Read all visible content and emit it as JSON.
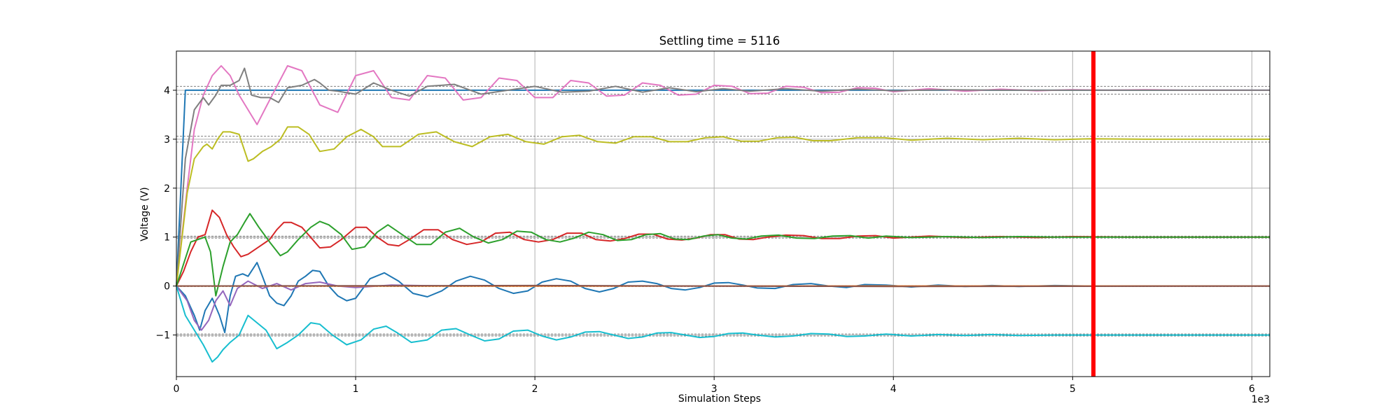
{
  "chart_data": {
    "type": "line",
    "title": "Settling time = 5116",
    "xlabel": "Simulation Steps",
    "ylabel": "Voltage (V)",
    "x_offset_label": "1e3",
    "xlim": [
      0,
      6100
    ],
    "ylim": [
      -1.85,
      4.8
    ],
    "x_ticks": [
      0,
      1000,
      2000,
      3000,
      4000,
      5000,
      6000
    ],
    "x_tick_labels": [
      "0",
      "1",
      "2",
      "3",
      "4",
      "5",
      "6"
    ],
    "y_ticks": [
      -1,
      0,
      1,
      2,
      3,
      4
    ],
    "y_tick_labels": [
      "−1",
      "0",
      "1",
      "2",
      "3",
      "4"
    ],
    "grid": true,
    "settling_time": 5116,
    "settling_line_color": "#ff0000",
    "tolerance_bands": [
      {
        "target": 4,
        "band": [
          3.92,
          4.08
        ]
      },
      {
        "target": 3,
        "band": [
          2.94,
          3.06
        ]
      },
      {
        "target": 1,
        "band": [
          0.98,
          1.02
        ]
      },
      {
        "target": 0,
        "band": [
          -0.01,
          0.01
        ]
      },
      {
        "target": -1,
        "band": [
          -1.02,
          -0.98
        ]
      }
    ],
    "series": [
      {
        "color": "#1f77b4",
        "target": 4,
        "x": [
          0,
          50,
          100,
          6100
        ],
        "y": [
          0,
          4,
          4,
          4
        ]
      },
      {
        "color": "#e377c2",
        "target": 4,
        "x": [
          0,
          60,
          100,
          150,
          200,
          250,
          300,
          350,
          400,
          450,
          520,
          620,
          700,
          800,
          900,
          1000,
          1100,
          1200,
          1300,
          1400,
          1500,
          1600,
          1700,
          1800,
          1900,
          2000,
          2100,
          2200,
          2300,
          2400,
          2500,
          2600,
          2700,
          2800,
          2900,
          3000,
          3100,
          3200,
          3300,
          3400,
          3500,
          3600,
          3700,
          3800,
          3900,
          4000,
          4200,
          4400,
          4600,
          4800,
          5000,
          5200,
          5400,
          5600,
          5800,
          6100
        ],
        "y": [
          0,
          2.0,
          3.2,
          3.9,
          4.3,
          4.5,
          4.3,
          3.9,
          3.6,
          3.3,
          3.8,
          4.5,
          4.4,
          3.7,
          3.55,
          4.3,
          4.4,
          3.85,
          3.8,
          4.3,
          4.25,
          3.8,
          3.85,
          4.25,
          4.2,
          3.85,
          3.85,
          4.2,
          4.15,
          3.88,
          3.9,
          4.15,
          4.1,
          3.9,
          3.92,
          4.1,
          4.08,
          3.93,
          3.94,
          4.08,
          4.06,
          3.95,
          3.96,
          4.05,
          4.04,
          3.97,
          4.03,
          3.98,
          4.02,
          3.99,
          4.01,
          4.0,
          4.01,
          4.0,
          4.0,
          4.0
        ]
      },
      {
        "color": "#7f7f7f",
        "target": 4,
        "x": [
          0,
          50,
          100,
          150,
          180,
          220,
          250,
          300,
          350,
          380,
          420,
          470,
          520,
          570,
          620,
          700,
          770,
          800,
          850,
          900,
          1000,
          1100,
          1200,
          1300,
          1400,
          1550,
          1700,
          1850,
          2000,
          2150,
          2300,
          2450,
          2600,
          2750,
          2900,
          3050,
          3200,
          3400,
          3600,
          3800,
          4000,
          4300,
          4600,
          5000,
          5500,
          6100
        ],
        "y": [
          0,
          2.6,
          3.6,
          3.85,
          3.7,
          3.9,
          4.1,
          4.1,
          4.2,
          4.45,
          3.9,
          3.85,
          3.85,
          3.75,
          4.05,
          4.1,
          4.22,
          4.15,
          4.0,
          3.98,
          3.92,
          4.15,
          4.0,
          3.88,
          4.08,
          4.12,
          3.92,
          4.0,
          4.08,
          3.96,
          3.98,
          4.08,
          3.96,
          4.05,
          3.97,
          4.03,
          3.98,
          4.03,
          3.98,
          4.02,
          3.99,
          4.01,
          4.0,
          4.0,
          4.0,
          4.0
        ]
      },
      {
        "color": "#bcbd22",
        "target": 3,
        "x": [
          0,
          60,
          100,
          150,
          170,
          200,
          230,
          260,
          300,
          350,
          400,
          430,
          480,
          530,
          580,
          620,
          680,
          740,
          800,
          880,
          950,
          1030,
          1100,
          1150,
          1250,
          1350,
          1450,
          1550,
          1650,
          1750,
          1850,
          1950,
          2050,
          2150,
          2250,
          2350,
          2450,
          2550,
          2650,
          2750,
          2850,
          2950,
          3050,
          3150,
          3250,
          3350,
          3450,
          3550,
          3650,
          3800,
          3950,
          4100,
          4300,
          4500,
          4700,
          4900,
          5100,
          5400,
          5800,
          6100
        ],
        "y": [
          0,
          1.9,
          2.6,
          2.85,
          2.9,
          2.8,
          3.0,
          3.15,
          3.15,
          3.1,
          2.55,
          2.6,
          2.75,
          2.85,
          3.0,
          3.25,
          3.25,
          3.1,
          2.75,
          2.8,
          3.05,
          3.2,
          3.05,
          2.85,
          2.85,
          3.1,
          3.15,
          2.95,
          2.85,
          3.05,
          3.1,
          2.95,
          2.9,
          3.05,
          3.08,
          2.95,
          2.92,
          3.05,
          3.05,
          2.95,
          2.95,
          3.03,
          3.05,
          2.96,
          2.96,
          3.03,
          3.04,
          2.97,
          2.97,
          3.03,
          3.03,
          2.98,
          3.02,
          2.99,
          3.02,
          2.99,
          3.01,
          3.0,
          3.0,
          3.0
        ]
      },
      {
        "color": "#d62728",
        "target": 1,
        "x": [
          0,
          40,
          80,
          120,
          160,
          200,
          240,
          280,
          320,
          360,
          400,
          460,
          520,
          560,
          600,
          640,
          700,
          760,
          800,
          860,
          920,
          1000,
          1060,
          1120,
          1180,
          1240,
          1300,
          1380,
          1460,
          1540,
          1620,
          1700,
          1780,
          1860,
          1940,
          2020,
          2100,
          2180,
          2260,
          2340,
          2420,
          2500,
          2580,
          2660,
          2740,
          2820,
          2900,
          2980,
          3060,
          3140,
          3220,
          3300,
          3400,
          3500,
          3600,
          3700,
          3800,
          3900,
          4000,
          4200,
          4400,
          4600,
          4800,
          5000,
          5300,
          5600,
          6100
        ],
        "y": [
          0,
          0.3,
          0.7,
          1.0,
          1.05,
          1.55,
          1.4,
          1.05,
          0.8,
          0.6,
          0.65,
          0.8,
          0.95,
          1.15,
          1.3,
          1.3,
          1.2,
          0.95,
          0.78,
          0.8,
          0.95,
          1.2,
          1.2,
          1.0,
          0.85,
          0.82,
          0.95,
          1.15,
          1.15,
          0.95,
          0.85,
          0.9,
          1.08,
          1.1,
          0.95,
          0.9,
          0.95,
          1.08,
          1.08,
          0.95,
          0.92,
          0.97,
          1.06,
          1.06,
          0.96,
          0.94,
          0.98,
          1.05,
          1.05,
          0.96,
          0.95,
          1.0,
          1.04,
          1.03,
          0.97,
          0.97,
          1.02,
          1.03,
          0.98,
          1.02,
          0.99,
          1.01,
          0.99,
          1.01,
          1.0,
          1.0,
          1.0
        ]
      },
      {
        "color": "#2ca02c",
        "target": 1,
        "x": [
          0,
          80,
          120,
          160,
          190,
          220,
          260,
          300,
          340,
          380,
          410,
          460,
          520,
          580,
          620,
          680,
          750,
          800,
          850,
          920,
          980,
          1050,
          1120,
          1180,
          1260,
          1340,
          1420,
          1500,
          1580,
          1660,
          1740,
          1820,
          1900,
          1980,
          2060,
          2140,
          2220,
          2300,
          2380,
          2460,
          2540,
          2620,
          2700,
          2780,
          2860,
          2940,
          3020,
          3100,
          3180,
          3260,
          3360,
          3460,
          3560,
          3660,
          3760,
          3860,
          3960,
          4100,
          4300,
          4500,
          4700,
          4900,
          5200,
          5600,
          6100
        ],
        "y": [
          0,
          0.9,
          0.95,
          1.0,
          0.7,
          -0.2,
          0.4,
          0.9,
          1.05,
          1.3,
          1.48,
          1.2,
          0.9,
          0.62,
          0.7,
          0.95,
          1.2,
          1.32,
          1.25,
          1.05,
          0.75,
          0.8,
          1.1,
          1.25,
          1.05,
          0.85,
          0.85,
          1.1,
          1.18,
          1.0,
          0.88,
          0.95,
          1.12,
          1.1,
          0.95,
          0.9,
          0.98,
          1.1,
          1.05,
          0.93,
          0.95,
          1.05,
          1.07,
          0.96,
          0.95,
          1.02,
          1.05,
          0.98,
          0.96,
          1.02,
          1.04,
          0.98,
          0.97,
          1.02,
          1.03,
          0.98,
          1.02,
          0.99,
          1.01,
          0.99,
          1.01,
          1.0,
          1.0,
          1.0,
          1.0
        ]
      },
      {
        "color": "#1f77b4",
        "target": 0,
        "x": [
          0,
          50,
          100,
          130,
          160,
          200,
          240,
          270,
          300,
          330,
          370,
          400,
          450,
          480,
          520,
          560,
          600,
          640,
          680,
          720,
          760,
          800,
          850,
          900,
          950,
          1000,
          1080,
          1160,
          1240,
          1320,
          1400,
          1480,
          1560,
          1640,
          1720,
          1800,
          1880,
          1960,
          2040,
          2120,
          2200,
          2280,
          2360,
          2440,
          2520,
          2600,
          2680,
          2760,
          2840,
          2920,
          3000,
          3080,
          3160,
          3240,
          3340,
          3440,
          3540,
          3640,
          3740,
          3840,
          3960,
          4100,
          4250,
          4400,
          4550,
          4700,
          4900,
          5100,
          5400,
          5800,
          6100
        ],
        "y": [
          0,
          -0.2,
          -0.6,
          -0.9,
          -0.5,
          -0.25,
          -0.6,
          -0.95,
          -0.2,
          0.2,
          0.25,
          0.2,
          0.48,
          0.2,
          -0.2,
          -0.35,
          -0.4,
          -0.2,
          0.1,
          0.2,
          0.32,
          0.3,
          0.0,
          -0.2,
          -0.3,
          -0.25,
          0.15,
          0.27,
          0.1,
          -0.15,
          -0.22,
          -0.1,
          0.1,
          0.2,
          0.12,
          -0.05,
          -0.15,
          -0.1,
          0.08,
          0.15,
          0.1,
          -0.05,
          -0.12,
          -0.05,
          0.08,
          0.1,
          0.05,
          -0.05,
          -0.08,
          -0.03,
          0.06,
          0.07,
          0.02,
          -0.04,
          -0.05,
          0.03,
          0.05,
          0.0,
          -0.03,
          0.03,
          0.02,
          -0.02,
          0.02,
          -0.01,
          0.01,
          -0.01,
          0.01,
          0.0,
          0.0,
          0.0,
          0.0
        ]
      },
      {
        "color": "#9467bd",
        "target": 0,
        "x": [
          0,
          60,
          100,
          140,
          180,
          220,
          260,
          300,
          340,
          400,
          480,
          560,
          640,
          720,
          800,
          900,
          1000,
          1200,
          1500,
          2000,
          3000,
          6100
        ],
        "y": [
          0,
          -0.3,
          -0.7,
          -0.9,
          -0.7,
          -0.3,
          -0.1,
          -0.4,
          -0.05,
          0.1,
          -0.05,
          0.05,
          -0.08,
          0.05,
          0.08,
          0.0,
          -0.03,
          0.02,
          0.0,
          0.0,
          0.0,
          0.0
        ]
      },
      {
        "color": "#ff7f0e",
        "target": 0,
        "x": [
          0,
          6100
        ],
        "y": [
          0,
          0
        ]
      },
      {
        "color": "#8c564b",
        "target": 0,
        "x": [
          0,
          2000,
          4000,
          6100
        ],
        "y": [
          0,
          0.01,
          -0.01,
          0.0
        ]
      },
      {
        "color": "#17becf",
        "target": -1,
        "x": [
          0,
          50,
          100,
          150,
          200,
          230,
          260,
          300,
          350,
          400,
          450,
          500,
          560,
          620,
          680,
          750,
          800,
          870,
          950,
          1030,
          1100,
          1170,
          1230,
          1310,
          1400,
          1480,
          1560,
          1640,
          1720,
          1800,
          1880,
          1960,
          2040,
          2120,
          2200,
          2280,
          2360,
          2440,
          2520,
          2600,
          2680,
          2760,
          2840,
          2920,
          3000,
          3080,
          3160,
          3240,
          3340,
          3440,
          3540,
          3640,
          3740,
          3840,
          3960,
          4100,
          4250,
          4400,
          4550,
          4700,
          4900,
          5100,
          5400,
          5800,
          6100
        ],
        "y": [
          0,
          -0.6,
          -0.9,
          -1.2,
          -1.55,
          -1.45,
          -1.3,
          -1.15,
          -1.0,
          -0.6,
          -0.75,
          -0.9,
          -1.28,
          -1.15,
          -1.0,
          -0.75,
          -0.78,
          -1.0,
          -1.2,
          -1.1,
          -0.88,
          -0.82,
          -0.95,
          -1.15,
          -1.1,
          -0.9,
          -0.87,
          -1.0,
          -1.12,
          -1.08,
          -0.92,
          -0.9,
          -1.02,
          -1.1,
          -1.04,
          -0.94,
          -0.93,
          -1.0,
          -1.07,
          -1.04,
          -0.96,
          -0.95,
          -1.0,
          -1.05,
          -1.03,
          -0.97,
          -0.96,
          -1.0,
          -1.04,
          -1.02,
          -0.97,
          -0.98,
          -1.03,
          -1.02,
          -0.98,
          -1.02,
          -0.99,
          -1.01,
          -0.99,
          -1.01,
          -1.0,
          -1.0,
          -1.0,
          -1.0,
          -1.0
        ]
      }
    ]
  }
}
